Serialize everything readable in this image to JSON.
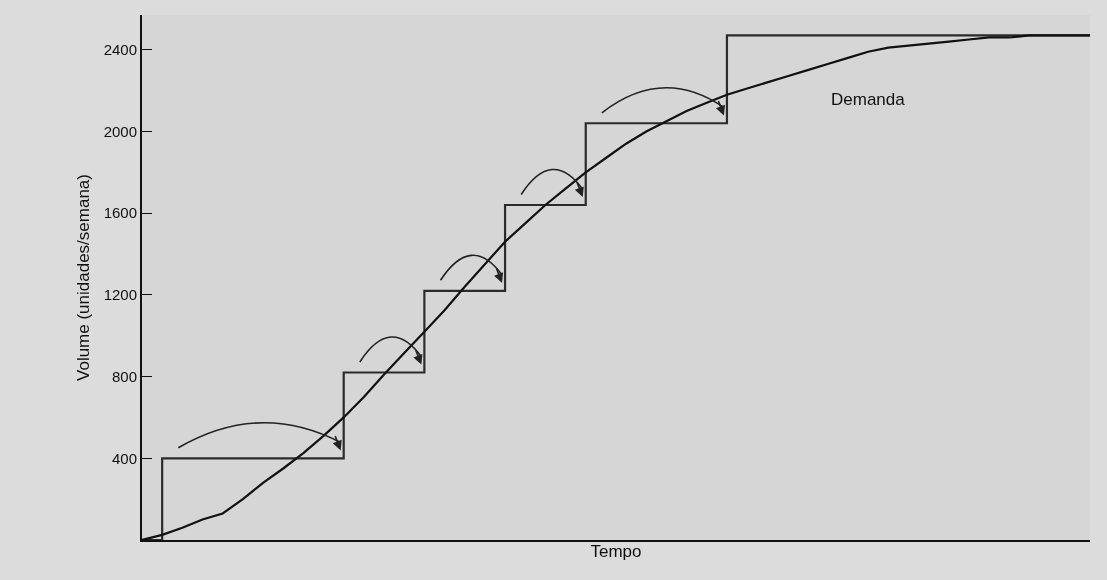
{
  "chart_data": {
    "type": "line",
    "xlabel": "Tempo",
    "ylabel": "Volume (unidades/semana)",
    "categories": [
      null,
      null,
      null,
      null,
      null,
      null,
      null,
      null,
      null,
      null,
      null,
      null,
      null,
      null,
      null,
      null,
      null,
      null,
      null,
      null,
      null,
      null,
      null,
      null,
      null,
      null,
      null,
      null,
      null,
      null,
      null,
      null,
      null,
      null,
      null,
      null,
      null,
      null,
      null,
      null,
      null,
      null,
      null,
      null,
      null,
      null,
      null,
      null
    ],
    "series": [
      {
        "type": "step",
        "color": "#2b2b2b",
        "values": [
          0,
          400,
          400,
          400,
          400,
          400,
          400,
          400,
          400,
          400,
          820,
          820,
          820,
          820,
          1220,
          1220,
          1220,
          1220,
          1640,
          1640,
          1640,
          1640,
          2040,
          2040,
          2040,
          2040,
          2040,
          2040,
          2040,
          2470,
          2470,
          2470,
          2470,
          2470,
          2470,
          2470,
          2470,
          2470,
          2470,
          2470,
          2470,
          2470,
          2470,
          2470,
          2470,
          2470,
          2470,
          2470
        ]
      },
      {
        "name": "Demanda",
        "color": "#111111",
        "values": [
          0,
          25,
          60,
          100,
          130,
          200,
          280,
          350,
          425,
          510,
          600,
          700,
          810,
          915,
          1020,
          1125,
          1240,
          1350,
          1460,
          1550,
          1640,
          1720,
          1800,
          1870,
          1940,
          2000,
          2050,
          2100,
          2140,
          2180,
          2210,
          2240,
          2270,
          2300,
          2330,
          2360,
          2390,
          2410,
          2420,
          2430,
          2440,
          2450,
          2460,
          2460,
          2470,
          2470,
          2470,
          2470
        ]
      }
    ],
    "ylim": [
      0,
      2570
    ],
    "yticks": [
      400,
      800,
      1200,
      1600,
      2000,
      2400
    ],
    "tick_labels": "y",
    "grid": false,
    "legend": false,
    "marker": "none",
    "line_style": "solid"
  }
}
